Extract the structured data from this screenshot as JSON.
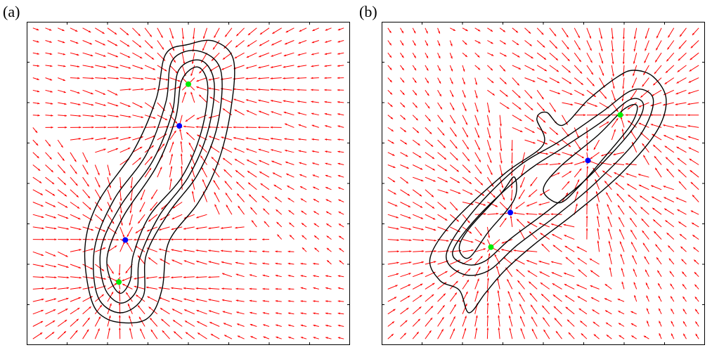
{
  "panels": [
    {
      "label": "(a)",
      "contour_color": "#000000",
      "arrow_color": "#ff0000",
      "blue_points": [
        [
          0.472,
          0.678
        ],
        [
          0.305,
          0.325
        ]
      ],
      "green_points": [
        [
          0.5,
          0.807
        ],
        [
          0.285,
          0.195
        ]
      ],
      "contours": [
        {
          "level": 1,
          "points": [
            [
              0.29,
              0.16
            ],
            [
              0.26,
              0.2
            ],
            [
              0.25,
              0.28
            ],
            [
              0.3,
              0.4
            ],
            [
              0.4,
              0.55
            ],
            [
              0.46,
              0.7
            ],
            [
              0.48,
              0.82
            ],
            [
              0.53,
              0.86
            ],
            [
              0.56,
              0.8
            ],
            [
              0.54,
              0.66
            ],
            [
              0.48,
              0.52
            ],
            [
              0.38,
              0.4
            ],
            [
              0.33,
              0.28
            ],
            [
              0.32,
              0.2
            ]
          ]
        },
        {
          "level": 2,
          "points": [
            [
              0.29,
              0.13
            ],
            [
              0.24,
              0.18
            ],
            [
              0.23,
              0.3
            ],
            [
              0.29,
              0.43
            ],
            [
              0.39,
              0.57
            ],
            [
              0.45,
              0.72
            ],
            [
              0.47,
              0.85
            ],
            [
              0.54,
              0.88
            ],
            [
              0.58,
              0.81
            ],
            [
              0.56,
              0.66
            ],
            [
              0.5,
              0.52
            ],
            [
              0.41,
              0.4
            ],
            [
              0.35,
              0.27
            ],
            [
              0.34,
              0.17
            ]
          ]
        },
        {
          "level": 3,
          "points": [
            [
              0.29,
              0.1
            ],
            [
              0.22,
              0.15
            ],
            [
              0.21,
              0.3
            ],
            [
              0.27,
              0.45
            ],
            [
              0.37,
              0.59
            ],
            [
              0.43,
              0.75
            ],
            [
              0.45,
              0.88
            ],
            [
              0.53,
              0.91
            ],
            [
              0.6,
              0.85
            ],
            [
              0.59,
              0.68
            ],
            [
              0.53,
              0.53
            ],
            [
              0.44,
              0.41
            ],
            [
              0.37,
              0.28
            ],
            [
              0.36,
              0.15
            ]
          ]
        },
        {
          "level": 4,
          "points": [
            [
              0.34,
              0.07
            ],
            [
              0.25,
              0.08
            ],
            [
              0.2,
              0.14
            ],
            [
              0.18,
              0.3
            ],
            [
              0.22,
              0.44
            ],
            [
              0.33,
              0.6
            ],
            [
              0.4,
              0.76
            ],
            [
              0.43,
              0.9
            ],
            [
              0.5,
              0.93
            ],
            [
              0.58,
              0.94
            ],
            [
              0.64,
              0.88
            ],
            [
              0.63,
              0.72
            ],
            [
              0.59,
              0.56
            ],
            [
              0.53,
              0.44
            ],
            [
              0.44,
              0.32
            ],
            [
              0.42,
              0.18
            ],
            [
              0.39,
              0.1
            ]
          ]
        }
      ]
    },
    {
      "label": "(b)",
      "contour_color": "#000000",
      "arrow_color": "#ff0000",
      "blue_points": [
        [
          0.638,
          0.571
        ],
        [
          0.398,
          0.41
        ]
      ],
      "green_points": [
        [
          0.738,
          0.712
        ],
        [
          0.338,
          0.303
        ]
      ],
      "contours": [
        {
          "level": 1,
          "points": [
            [
              0.27,
              0.27
            ],
            [
              0.24,
              0.3
            ],
            [
              0.27,
              0.36
            ],
            [
              0.37,
              0.47
            ],
            [
              0.41,
              0.52
            ],
            [
              0.41,
              0.45
            ],
            [
              0.33,
              0.35
            ]
          ]
        },
        {
          "level": 1,
          "points": [
            [
              0.55,
              0.44
            ],
            [
              0.5,
              0.48
            ],
            [
              0.55,
              0.55
            ],
            [
              0.67,
              0.65
            ],
            [
              0.75,
              0.73
            ],
            [
              0.79,
              0.74
            ],
            [
              0.77,
              0.68
            ],
            [
              0.68,
              0.57
            ],
            [
              0.61,
              0.49
            ]
          ]
        },
        {
          "level": 2,
          "points": [
            [
              0.26,
              0.25
            ],
            [
              0.22,
              0.29
            ],
            [
              0.3,
              0.4
            ],
            [
              0.44,
              0.53
            ],
            [
              0.56,
              0.61
            ],
            [
              0.68,
              0.69
            ],
            [
              0.77,
              0.76
            ],
            [
              0.81,
              0.74
            ],
            [
              0.77,
              0.66
            ],
            [
              0.64,
              0.52
            ],
            [
              0.52,
              0.42
            ],
            [
              0.4,
              0.33
            ],
            [
              0.32,
              0.26
            ]
          ]
        },
        {
          "level": 3,
          "points": [
            [
              0.25,
              0.22
            ],
            [
              0.2,
              0.28
            ],
            [
              0.28,
              0.41
            ],
            [
              0.42,
              0.55
            ],
            [
              0.55,
              0.63
            ],
            [
              0.68,
              0.72
            ],
            [
              0.78,
              0.79
            ],
            [
              0.84,
              0.76
            ],
            [
              0.8,
              0.65
            ],
            [
              0.67,
              0.51
            ],
            [
              0.54,
              0.4
            ],
            [
              0.42,
              0.31
            ],
            [
              0.33,
              0.23
            ]
          ]
        },
        {
          "level": 4,
          "points": [
            [
              0.24,
              0.17
            ],
            [
              0.18,
              0.2
            ],
            [
              0.15,
              0.27
            ],
            [
              0.22,
              0.38
            ],
            [
              0.38,
              0.53
            ],
            [
              0.5,
              0.62
            ],
            [
              0.48,
              0.7
            ],
            [
              0.51,
              0.72
            ],
            [
              0.56,
              0.68
            ],
            [
              0.64,
              0.76
            ],
            [
              0.73,
              0.83
            ],
            [
              0.78,
              0.85
            ],
            [
              0.84,
              0.83
            ],
            [
              0.88,
              0.76
            ],
            [
              0.85,
              0.66
            ],
            [
              0.74,
              0.53
            ],
            [
              0.6,
              0.41
            ],
            [
              0.47,
              0.31
            ],
            [
              0.38,
              0.23
            ],
            [
              0.32,
              0.16
            ],
            [
              0.27,
              0.1
            ]
          ]
        }
      ]
    }
  ]
}
